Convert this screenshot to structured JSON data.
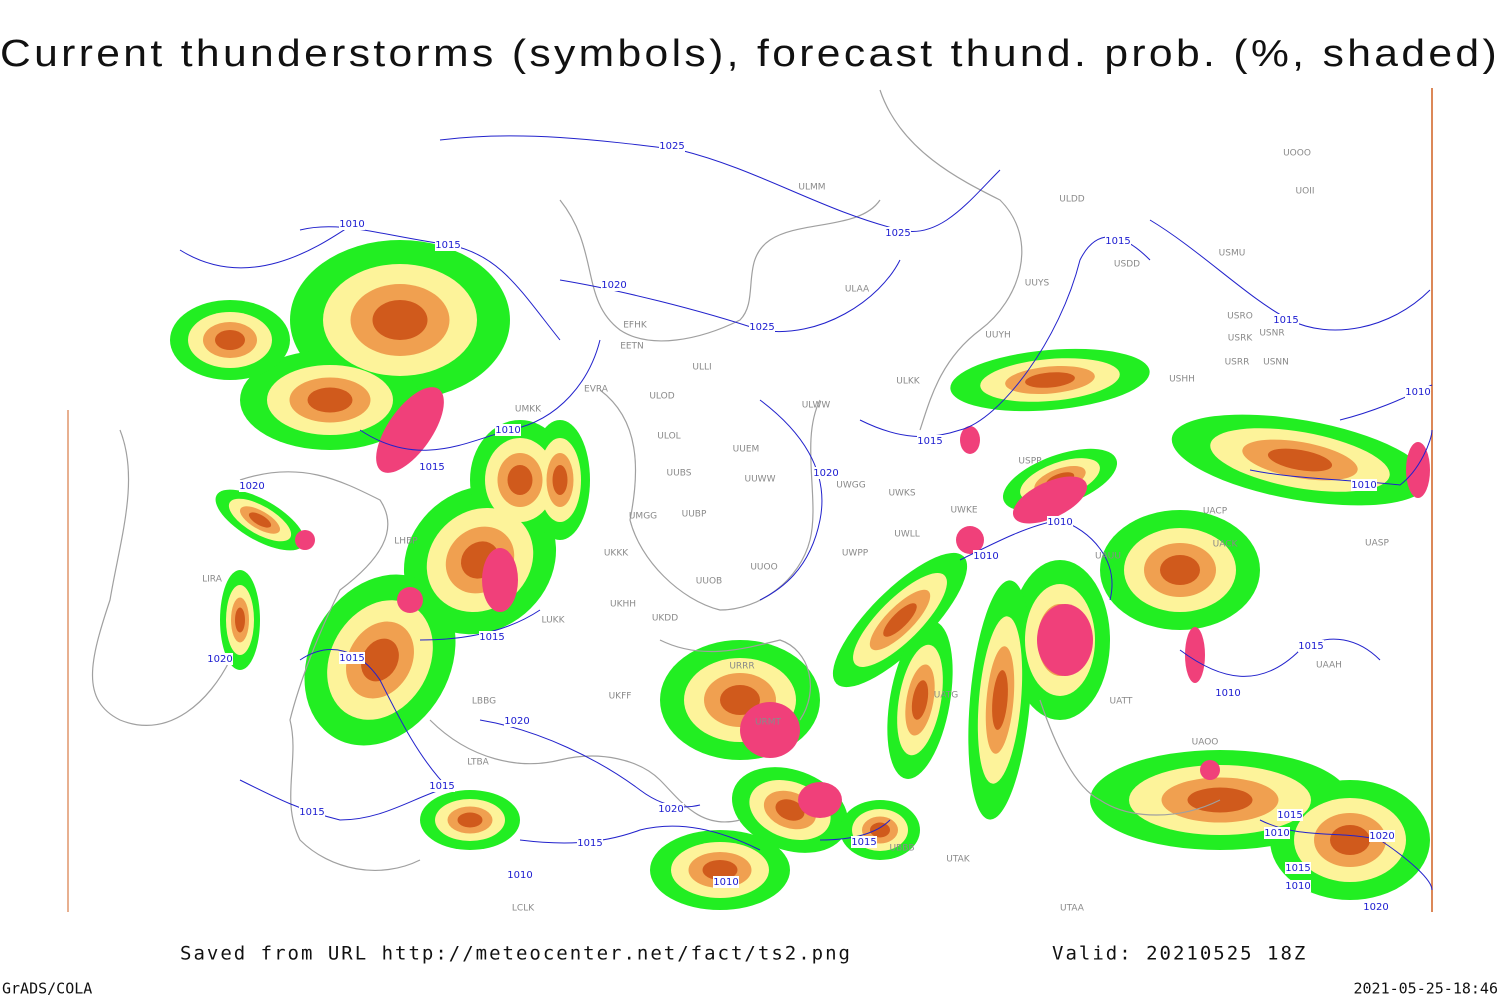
{
  "title": "Current thunderstorms (symbols), forecast thund. prob. (%, shaded)",
  "isobar_labels": [
    "1025",
    "1025",
    "1025",
    "1020",
    "1015",
    "1010",
    "1010",
    "1015",
    "1020",
    "1015",
    "1020",
    "1015",
    "1015",
    "1010",
    "1010",
    "1010",
    "1010",
    "1015",
    "1015",
    "1020",
    "1020",
    "1015",
    "1015",
    "1020",
    "1015",
    "1010",
    "1010",
    "1015",
    "1015",
    "1010",
    "1015",
    "1010",
    "1020",
    "1015",
    "1010",
    "1020"
  ],
  "station_labels": [
    "ULMM",
    "ULDD",
    "USMU",
    "ULAA",
    "UUYS",
    "USDD",
    "USRO",
    "USRK",
    "USNR",
    "USRR",
    "USNN",
    "UUYH",
    "ULKK",
    "USHH",
    "ULOL",
    "ULOD",
    "UUEM",
    "UUWW",
    "ULWW",
    "UUBS",
    "UUBP",
    "UMGG",
    "UUOB",
    "UUOO",
    "UWPP",
    "UWGG",
    "UWKS",
    "UWKE",
    "UWLL",
    "USPP",
    "UACP",
    "UACK",
    "UASP",
    "UAUU",
    "UATT",
    "UAOO",
    "UAAH",
    "UATG",
    "UBBB",
    "UTAK",
    "UTAA",
    "UOOO",
    "UOII",
    "EVRA",
    "UMKK",
    "ULLI",
    "EFHK",
    "EETN",
    "UKKK",
    "UKHH",
    "UKDD",
    "UKFF",
    "LUKK",
    "LTBA",
    "LBBG",
    "LHBP",
    "LIRA",
    "LCLK",
    "URRR",
    "URMT"
  ],
  "footer": {
    "source": "Saved from URL http://meteocenter.net/fact/ts2.png",
    "valid": "Valid: 20210525 18Z",
    "software": "GrADS/COLA",
    "timestamp": "2021-05-25-18:46"
  }
}
